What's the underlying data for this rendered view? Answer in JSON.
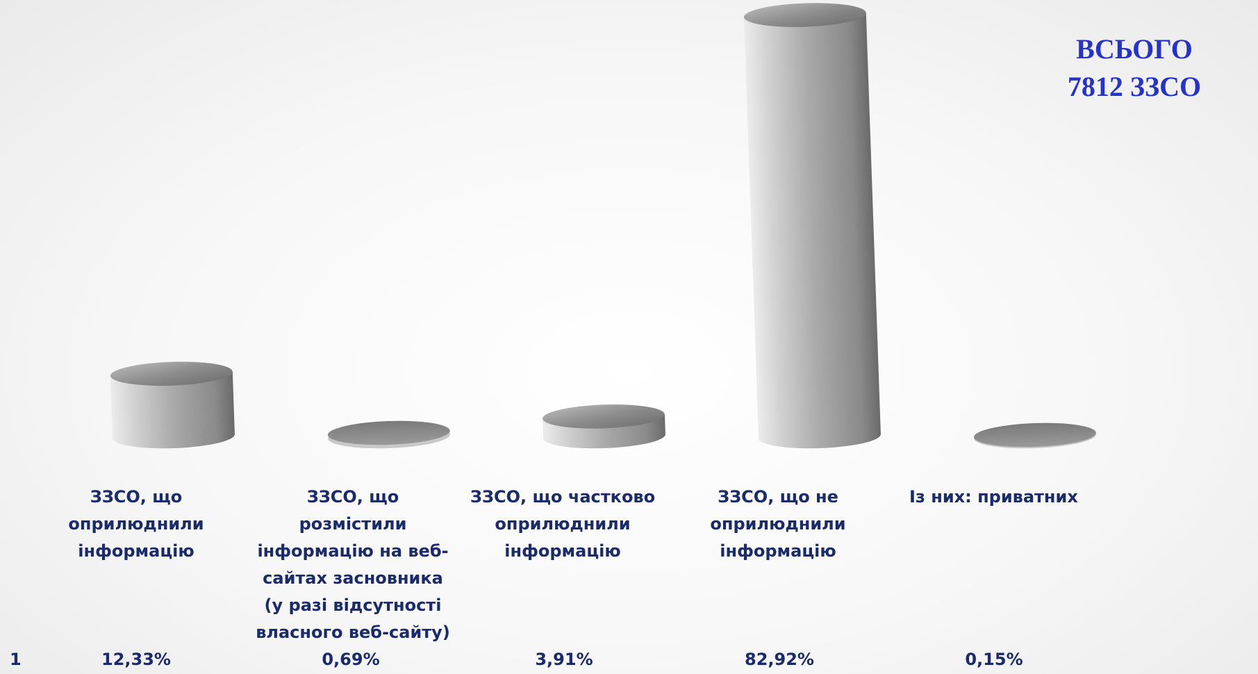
{
  "chart_data": {
    "type": "bar",
    "title": "",
    "total_line1": "ВСЬОГО",
    "total_line2": "7812  ЗЗСО",
    "row_label": "1",
    "categories": [
      "ЗЗСО, що оприлюднили інформацію",
      "ЗЗСО, що розмістили інформацію на веб-сайтах засновника (у разі відсутності власного веб-сайту)",
      "ЗЗСО, що частково оприлюднили інформацію",
      "ЗЗСО, що не оприлюднили інформацію",
      "Із них: приватних"
    ],
    "values": [
      12.33,
      0.69,
      3.91,
      82.92,
      0.15
    ],
    "value_labels": [
      "12,33%",
      "0,69%",
      "3,91%",
      "82,92%",
      "0,15%"
    ],
    "ylim": [
      0,
      85
    ],
    "grid": false,
    "legend": "none"
  },
  "colors": {
    "accent": "#2633c9",
    "label": "#1a2b6b",
    "bar_light": "#d9d9d9",
    "bar_dark": "#6f6f6f"
  }
}
